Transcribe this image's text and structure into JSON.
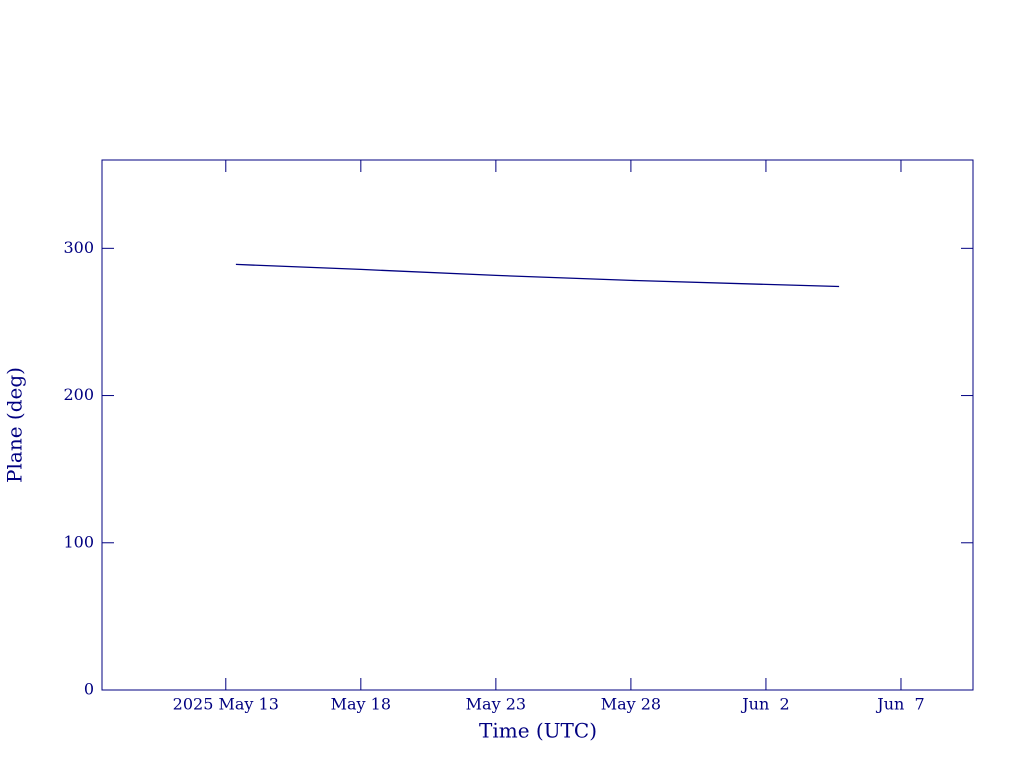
{
  "chart_data": {
    "type": "line",
    "xlabel": "Time (UTC)",
    "ylabel": "Plane (deg)",
    "x": [
      "2025-05-13T09:00",
      "2025-05-18",
      "2025-05-23",
      "2025-05-28",
      "2025-06-02",
      "2025-06-04T17:00"
    ],
    "series": [
      {
        "color": "#000080",
        "values": [
          289.1,
          285.7,
          281.6,
          278.2,
          275.5,
          274.1
        ]
      }
    ],
    "xlim": [
      "2025-05-08T10:00",
      "2025-06-09T16:00"
    ],
    "xticks": [
      {
        "value": "2025-05-13",
        "label": "2025 May 13"
      },
      {
        "value": "2025-05-18",
        "label": "May 18"
      },
      {
        "value": "2025-05-23",
        "label": "May 23"
      },
      {
        "value": "2025-05-28",
        "label": "May 28"
      },
      {
        "value": "2025-06-02",
        "label": "Jun  2"
      },
      {
        "value": "2025-06-07",
        "label": "Jun  7"
      }
    ],
    "ylim": [
      0,
      360
    ],
    "yticks": [
      0,
      100,
      200,
      300
    ],
    "axis_color": "#000080"
  }
}
